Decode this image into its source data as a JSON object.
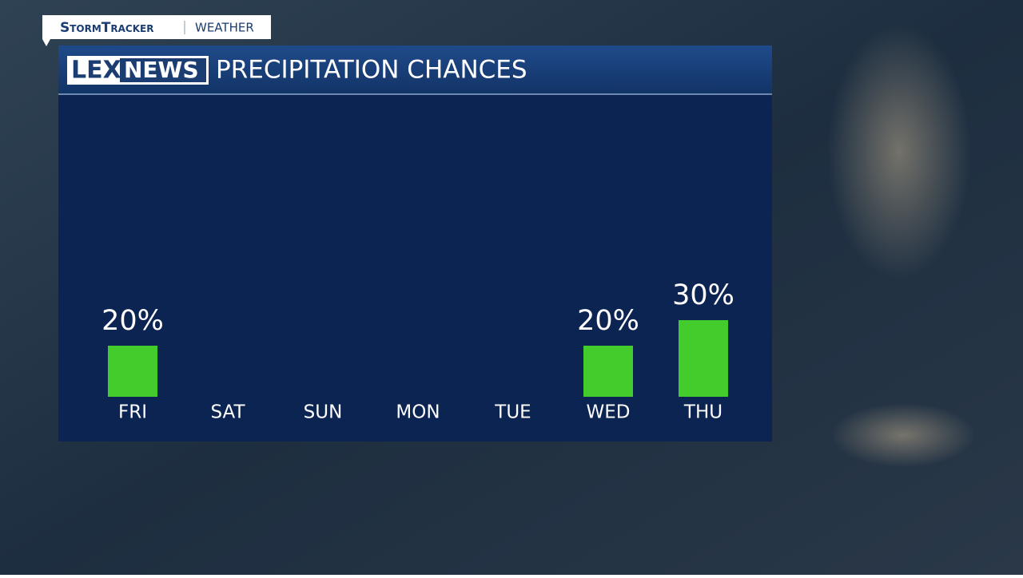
{
  "brand": {
    "name": "StormTracker",
    "section": "WEATHER"
  },
  "logo": {
    "left": "LEX",
    "right": "NEWS"
  },
  "chart_data": {
    "type": "bar",
    "title": "PRECIPITATION CHANCES",
    "categories": [
      "FRI",
      "SAT",
      "SUN",
      "MON",
      "TUE",
      "WED",
      "THU"
    ],
    "values": [
      20,
      0,
      0,
      0,
      0,
      20,
      30
    ],
    "value_labels": [
      "20%",
      null,
      null,
      null,
      null,
      "20%",
      "30%"
    ],
    "color": "#44cc2c",
    "ylim": [
      0,
      100
    ]
  }
}
